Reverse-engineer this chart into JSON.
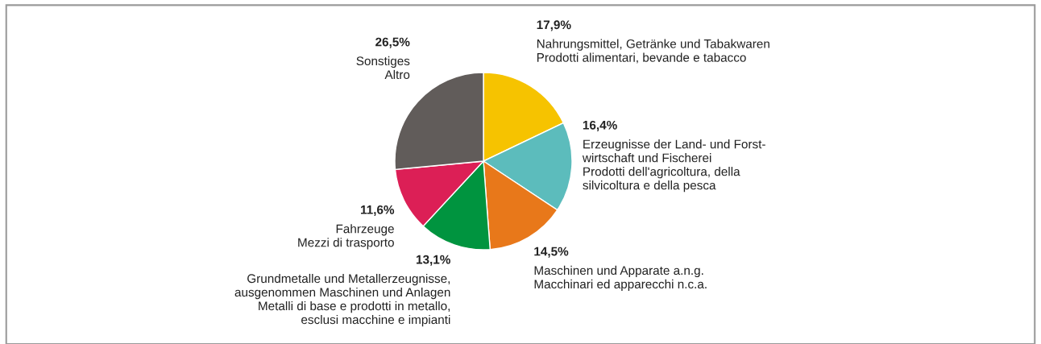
{
  "chart_data": {
    "type": "pie",
    "categories": [
      "Nahrungsmittel, Getränke und Tabakwaren\nProdotti alimentari, bevande e tabacco",
      "Erzeugnisse der Land- und Forst-\nwirtschaft und Fischerei\nProdotti dell'agricoltura, della\nsilvicoltura e della pesca",
      "Maschinen und Apparate a.n.g.\nMacchinari ed apparecchi n.c.a.",
      "Grundmetalle und Metallerzeugnisse,\nausgenommen Maschinen und Anlagen\nMetalli di base e prodotti in metallo,\nesclusi macchine e impianti",
      "Fahrzeuge\nMezzi di trasporto",
      "Sonstiges\nAltro"
    ],
    "values": [
      17.9,
      16.4,
      14.5,
      13.1,
      11.6,
      26.5
    ],
    "value_labels": [
      "17,9%",
      "16,4%",
      "14,5%",
      "13,1%",
      "11,6%",
      "26,5%"
    ],
    "colors": [
      "#f6c300",
      "#5cbcbc",
      "#e8781a",
      "#00943f",
      "#dc1f56",
      "#615c5a"
    ],
    "legend": false
  }
}
